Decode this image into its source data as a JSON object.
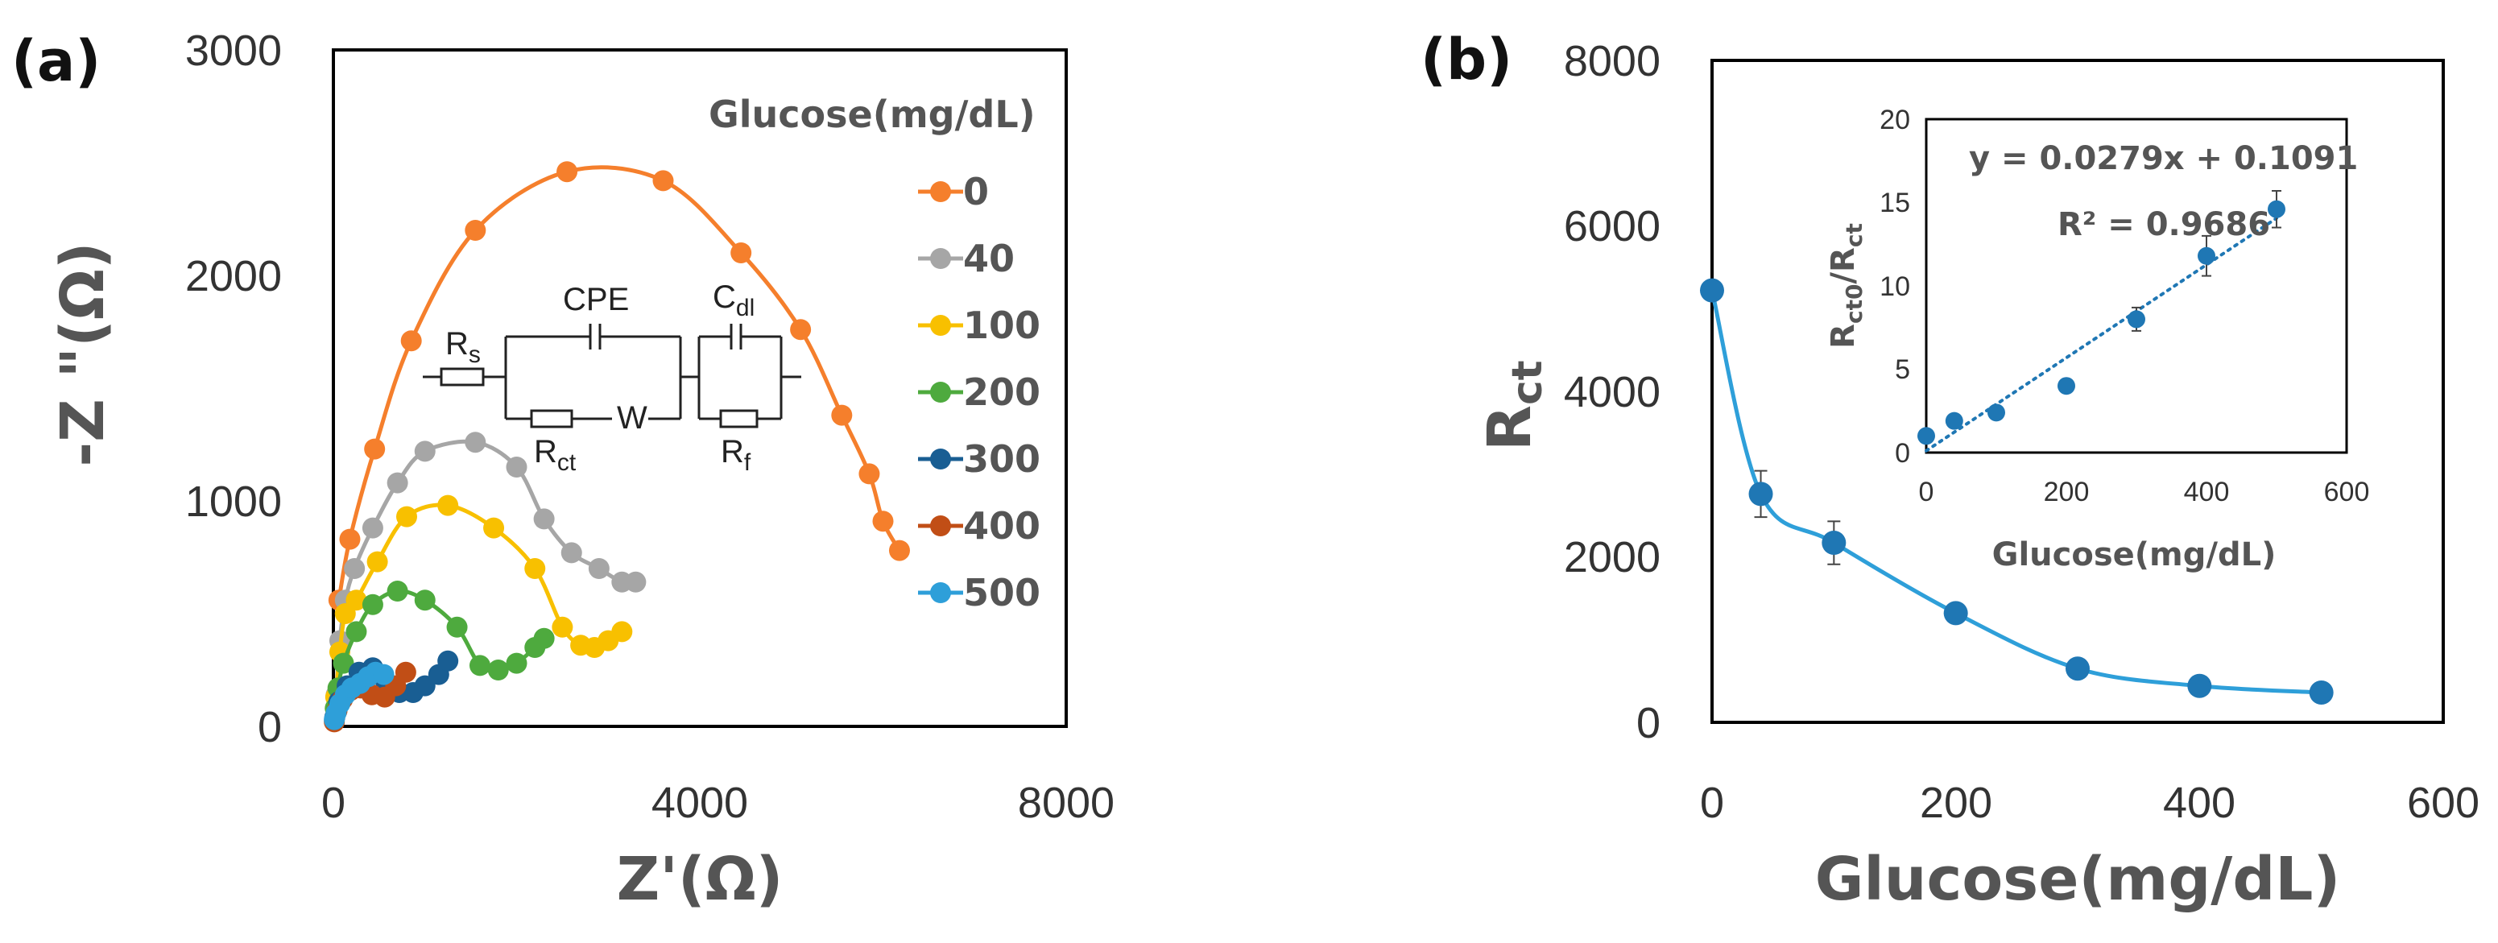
{
  "chart_data": [
    {
      "panel_label": "(a)",
      "type": "scatter",
      "xlabel": "Z'(Ω)",
      "ylabel": "-Z \"(Ω)",
      "xlim": [
        0,
        8000
      ],
      "ylim": [
        0,
        3000
      ],
      "xticks": [
        "0",
        "4000",
        "8000"
      ],
      "yticks": [
        "0",
        "1000",
        "2000",
        "3000"
      ],
      "legend_title": "Glucose(mg/dL)",
      "circuit_labels": {
        "rs": "R",
        "rs_sub": "s",
        "cpe": "CPE",
        "cdl": "C",
        "cdl_sub": "dl",
        "rct": "R",
        "rct_sub": "ct",
        "w": "W",
        "rf": "R",
        "rf_sub": "f"
      },
      "series": [
        {
          "name": "0",
          "color": "#F57F2C",
          "points": [
            [
              60,
              560
            ],
            [
              180,
              830
            ],
            [
              450,
              1230
            ],
            [
              850,
              1710
            ],
            [
              1550,
              2200
            ],
            [
              2550,
              2460
            ],
            [
              3600,
              2420
            ],
            [
              4450,
              2100
            ],
            [
              5100,
              1760
            ],
            [
              5550,
              1380
            ],
            [
              5850,
              1120
            ],
            [
              6000,
              910
            ],
            [
              6180,
              780
            ]
          ]
        },
        {
          "name": "40",
          "color": "#A6A6A6",
          "points": [
            [
              30,
              140
            ],
            [
              70,
              380
            ],
            [
              130,
              560
            ],
            [
              230,
              700
            ],
            [
              430,
              880
            ],
            [
              700,
              1080
            ],
            [
              1000,
              1220
            ],
            [
              1550,
              1260
            ],
            [
              2000,
              1150
            ],
            [
              2300,
              920
            ],
            [
              2600,
              770
            ],
            [
              2900,
              700
            ],
            [
              3150,
              640
            ],
            [
              3300,
              640
            ]
          ]
        },
        {
          "name": "100",
          "color": "#F8C000",
          "points": [
            [
              25,
              130
            ],
            [
              70,
              330
            ],
            [
              130,
              500
            ],
            [
              250,
              560
            ],
            [
              480,
              730
            ],
            [
              800,
              930
            ],
            [
              1250,
              980
            ],
            [
              1750,
              880
            ],
            [
              2200,
              700
            ],
            [
              2500,
              440
            ],
            [
              2700,
              360
            ],
            [
              2850,
              350
            ],
            [
              3000,
              380
            ],
            [
              3150,
              420
            ]
          ]
        },
        {
          "name": "200",
          "color": "#4EAA3E",
          "points": [
            [
              20,
              80
            ],
            [
              50,
              170
            ],
            [
              110,
              280
            ],
            [
              250,
              420
            ],
            [
              430,
              540
            ],
            [
              700,
              600
            ],
            [
              1000,
              560
            ],
            [
              1350,
              440
            ],
            [
              1600,
              270
            ],
            [
              1800,
              250
            ],
            [
              2000,
              280
            ],
            [
              2200,
              350
            ],
            [
              2300,
              390
            ]
          ]
        },
        {
          "name": "300",
          "color": "#195E93",
          "points": [
            [
              15,
              40
            ],
            [
              60,
              110
            ],
            [
              150,
              180
            ],
            [
              280,
              240
            ],
            [
              430,
              260
            ],
            [
              570,
              200
            ],
            [
              720,
              150
            ],
            [
              870,
              150
            ],
            [
              1000,
              180
            ],
            [
              1150,
              230
            ],
            [
              1250,
              290
            ]
          ]
        },
        {
          "name": "400",
          "color": "#C14E16",
          "points": [
            [
              10,
              20
            ],
            [
              40,
              70
            ],
            [
              100,
              120
            ],
            [
              190,
              160
            ],
            [
              300,
              170
            ],
            [
              420,
              140
            ],
            [
              560,
              130
            ],
            [
              680,
              180
            ],
            [
              790,
              240
            ]
          ]
        },
        {
          "name": "500",
          "color": "#2E9FD9",
          "points": [
            [
              10,
              30
            ],
            [
              30,
              60
            ],
            [
              70,
              100
            ],
            [
              130,
              140
            ],
            [
              200,
              170
            ],
            [
              290,
              190
            ],
            [
              380,
              220
            ],
            [
              460,
              240
            ],
            [
              550,
              230
            ]
          ]
        }
      ]
    },
    {
      "panel_label": "(b)",
      "type": "scatter",
      "xlabel": "Glucose(mg/dL)",
      "ylabel": "R",
      "ylabel_sub": "ct",
      "xlim": [
        0,
        600
      ],
      "ylim": [
        0,
        8000
      ],
      "xticks": [
        "0",
        "200",
        "400",
        "600"
      ],
      "yticks": [
        "0",
        "2000",
        "4000",
        "6000",
        "8000"
      ],
      "color": "#1F77B4",
      "points": [
        {
          "x": 0,
          "y": 5220,
          "err": 0
        },
        {
          "x": 40,
          "y": 2760,
          "err": 280
        },
        {
          "x": 100,
          "y": 2170,
          "err": 260
        },
        {
          "x": 200,
          "y": 1320,
          "err": 0
        },
        {
          "x": 300,
          "y": 650,
          "err": 0
        },
        {
          "x": 400,
          "y": 440,
          "err": 0
        },
        {
          "x": 500,
          "y": 360,
          "err": 0
        }
      ],
      "inset": {
        "type": "scatter",
        "xlabel": "Glucose(mg/dL)",
        "ylabel_main": "R",
        "ylabel_sub1": "ct0",
        "ylabel_slash": "/R",
        "ylabel_sub2": "ct",
        "xlim": [
          0,
          600
        ],
        "ylim": [
          0,
          20
        ],
        "xticks": [
          "0",
          "200",
          "400",
          "600"
        ],
        "yticks": [
          "0",
          "5",
          "10",
          "15",
          "20"
        ],
        "equation": "y = 0.0279x + 0.1091",
        "r_squared": "R² = 0.9686",
        "fit": {
          "slope": 0.0279,
          "intercept": 0.1091
        },
        "points": [
          {
            "x": 0,
            "y": 1.0,
            "err": 0
          },
          {
            "x": 40,
            "y": 1.9,
            "err": 0
          },
          {
            "x": 100,
            "y": 2.4,
            "err": 0
          },
          {
            "x": 200,
            "y": 4.0,
            "err": 0
          },
          {
            "x": 300,
            "y": 8.0,
            "err": 0.7
          },
          {
            "x": 400,
            "y": 11.8,
            "err": 1.2
          },
          {
            "x": 500,
            "y": 14.6,
            "err": 1.1
          }
        ]
      }
    }
  ]
}
